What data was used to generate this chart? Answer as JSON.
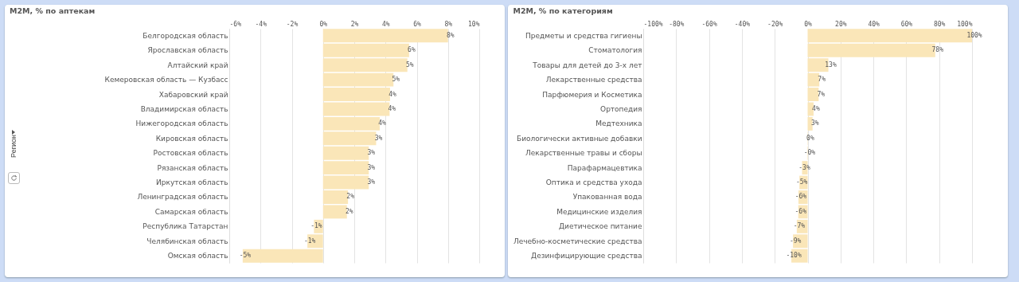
{
  "chart_data": [
    {
      "type": "bar",
      "orientation": "horizontal",
      "title": "M2M, % по аптекам",
      "ylabel": "Регион",
      "categories": [
        "Белгородская область",
        "Ярославская область",
        "Алтайский край",
        "Кемеровская область — Кузбасс",
        "Хабаровский край",
        "Владимирская область",
        "Нижегородская область",
        "Кировская область",
        "Ростовская область",
        "Рязанская область",
        "Иркутская область",
        "Ленинградская область",
        "Самарская область",
        "Республика Татарстан",
        "Челябинская область",
        "Омская область"
      ],
      "values": [
        8.0,
        5.51,
        5.4,
        4.51,
        4.29,
        4.26,
        3.63,
        3.4,
        2.93,
        2.93,
        2.93,
        1.6,
        1.53,
        -0.58,
        -1.0,
        -5.14
      ],
      "value_labels": [
        "8%",
        "6%",
        "5%",
        "5%",
        "4%",
        "4%",
        "4%",
        "3%",
        "3%",
        "3%",
        "3%",
        "2%",
        "2%",
        "-1%",
        "-1%",
        "-5%"
      ],
      "color": "#fae6b8",
      "xlim": [
        -6,
        10
      ],
      "xticks": [
        {
          "value": -6,
          "label": "-6%"
        },
        {
          "value": -4,
          "label": "-4%"
        },
        {
          "value": -2,
          "label": "-2%"
        },
        {
          "value": 0,
          "label": "0%"
        },
        {
          "value": 2,
          "label": "2%"
        },
        {
          "value": 4,
          "label": "4%"
        },
        {
          "value": 6,
          "label": "6%"
        },
        {
          "value": 8,
          "label": "8%"
        },
        {
          "value": 10,
          "label": "10%"
        }
      ],
      "grid": "x"
    },
    {
      "type": "bar",
      "orientation": "horizontal",
      "title": "M2M, % по категориям",
      "categories": [
        "Предметы и средства гигиены",
        "Стоматология",
        "Товары для детей до 3-х лет",
        "Лекарственные средства",
        "Парфюмерия и Косметика",
        "Ортопедия",
        "Медтехника",
        "Биологически активные добавки",
        "Лекарственные травы и сборы",
        "Парафармацевтика",
        "Оптика и средства ухода",
        "Упакованная вода",
        "Медицинские изделия",
        "Диетическое питание",
        "Лечебно-косметические средства",
        "Дезинфицирующие средства"
      ],
      "values": [
        100,
        77.6,
        12.6,
        7.1,
        6.7,
        3.6,
        3.0,
        0.2,
        -0.3,
        -3.4,
        -5.0,
        -5.6,
        -5.7,
        -6.6,
        -8.9,
        -9.9
      ],
      "value_labels": [
        "100%",
        "78%",
        "13%",
        "7%",
        "7%",
        "4%",
        "3%",
        "0%",
        "-0%",
        "-3%",
        "-5%",
        "-6%",
        "-6%",
        "-7%",
        "-9%",
        "-10%"
      ],
      "color": "#fae6b8",
      "xlim": [
        -100,
        100
      ],
      "xticks": [
        {
          "value": -100,
          "label": "-100%"
        },
        {
          "value": -80,
          "label": "-80%"
        },
        {
          "value": -60,
          "label": "-60%"
        },
        {
          "value": -40,
          "label": "-40%"
        },
        {
          "value": -20,
          "label": "-20%"
        },
        {
          "value": 0,
          "label": "0%"
        },
        {
          "value": 20,
          "label": "20%"
        },
        {
          "value": 40,
          "label": "40%"
        },
        {
          "value": 60,
          "label": "60%"
        },
        {
          "value": 80,
          "label": "80%"
        },
        {
          "value": 100,
          "label": "100%"
        }
      ],
      "grid": "x"
    }
  ]
}
